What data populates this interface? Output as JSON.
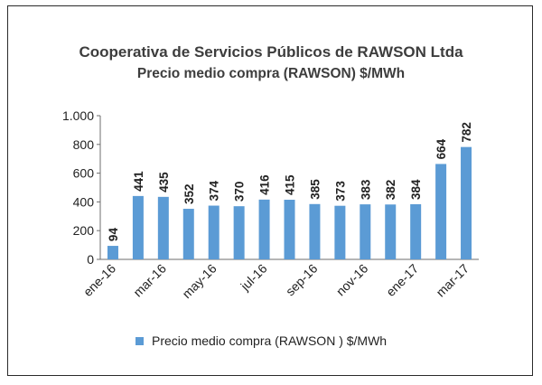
{
  "title": "Cooperativa de Servicios Públicos de RAWSON Ltda",
  "subtitle": "Precio medio compra (RAWSON)    $/MWh",
  "colors": {
    "bar": "#5b9bd5"
  },
  "chart_data": {
    "type": "bar",
    "title": "Cooperativa de Servicios Públicos de RAWSON Ltda",
    "subtitle": "Precio medio compra (RAWSON)    $/MWh",
    "categories": [
      "ene-16",
      "feb-16",
      "mar-16",
      "abr-16",
      "may-16",
      "jun-16",
      "jul-16",
      "ago-16",
      "sep-16",
      "oct-16",
      "nov-16",
      "dic-16",
      "ene-17",
      "feb-17",
      "mar-17"
    ],
    "visible_xtick_labels": [
      "ene-16",
      "mar-16",
      "may-16",
      "jul-16",
      "sep-16",
      "nov-16",
      "ene-17",
      "mar-17"
    ],
    "series": [
      {
        "name": "Precio medio compra (RAWSON )  $/MWh",
        "values": [
          94,
          441,
          435,
          352,
          374,
          370,
          416,
          415,
          385,
          373,
          383,
          382,
          384,
          664,
          782
        ]
      }
    ],
    "ylim": [
      0,
      1000
    ],
    "yticks": [
      0,
      200,
      400,
      600,
      800,
      1000
    ],
    "ytick_labels": [
      "0",
      "200",
      "400",
      "600",
      "800",
      "1.000"
    ],
    "data_labels": true,
    "grid": false,
    "legend_position": "bottom"
  }
}
